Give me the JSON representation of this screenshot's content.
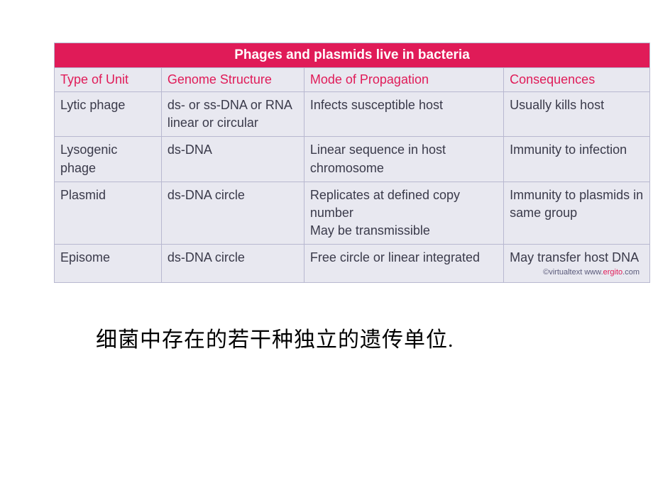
{
  "table": {
    "title": "Phages and plasmids live in bacteria",
    "headers": [
      "Type of Unit",
      "Genome Structure",
      "Mode of Propagation",
      "Consequences"
    ],
    "rows": [
      {
        "type": "Lytic phage",
        "genome": "ds- or ss-DNA or RNA linear or circular",
        "mode": "Infects susceptible host",
        "consequence": "Usually kills host"
      },
      {
        "type": "Lysogenic phage",
        "genome": "ds-DNA",
        "mode": "Linear sequence in host chromosome",
        "consequence": "Immunity to infection"
      },
      {
        "type": "Plasmid",
        "genome": "ds-DNA circle",
        "mode": "Replicates at defined copy number\nMay be transmissible",
        "consequence": "Immunity to plasmids in same group"
      },
      {
        "type": "Episome",
        "genome": "ds-DNA circle",
        "mode": "Free circle or linear integrated",
        "consequence": "May transfer host DNA"
      }
    ],
    "credit_plain": "©virtualtext  www.",
    "credit_accent": "ergito",
    "credit_tail": ".com"
  },
  "caption": "细菌中存在的若干种独立的遗传单位.",
  "colors": {
    "title_bg": "#e01b58",
    "title_fg": "#ffffff",
    "header_fg": "#e01b58",
    "cell_bg": "#e8e8f0",
    "cell_fg": "#3a3a4a",
    "border": "#b8b8d0"
  }
}
